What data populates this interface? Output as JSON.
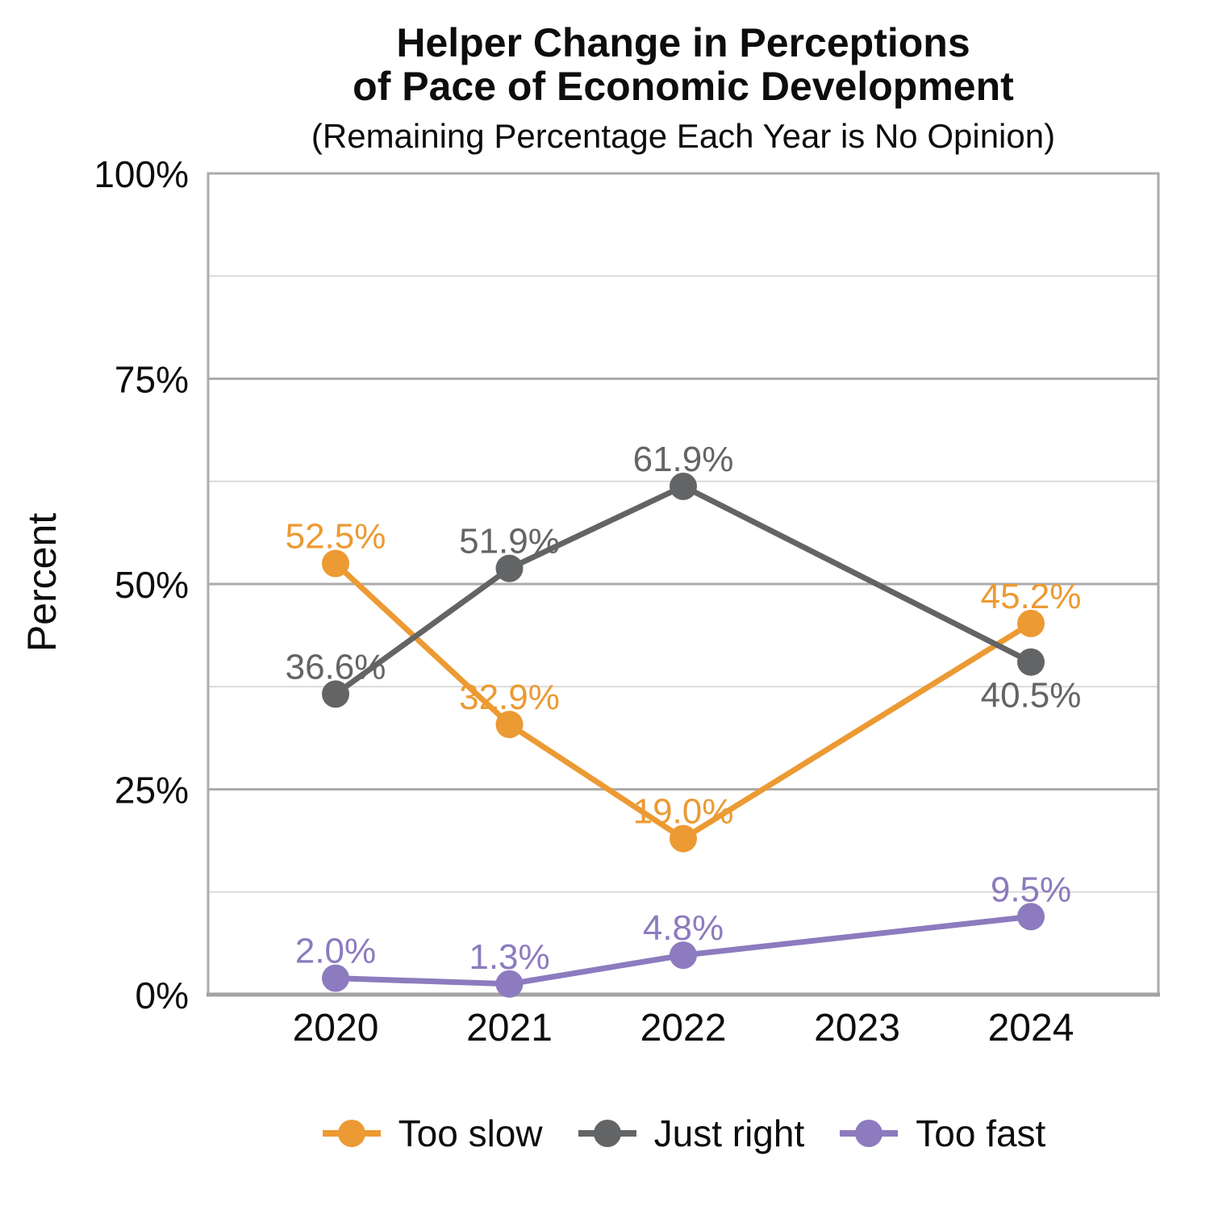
{
  "title": {
    "line1": "Helper Change in Perceptions",
    "line2": "of Pace of Economic Development"
  },
  "subtitle": "(Remaining Percentage Each Year is No Opinion)",
  "y_axis": {
    "title": "Percent"
  },
  "colors": {
    "background": "#FFFFFF",
    "text": "#0D0D0D",
    "plot_border": "#ABABAB",
    "grid_major": "#ABABAB",
    "grid_minor": "#DBDBDB",
    "axis_line": "#A3A3A3",
    "too_slow": "#EC9A33",
    "just_right": "#636466",
    "too_fast": "#8C7BBE"
  },
  "chart_data": {
    "type": "line",
    "title": "Helper Change in Perceptions of Pace of Economic Development",
    "subtitle": "(Remaining Percentage Each Year is No Opinion)",
    "xlabel": "",
    "ylabel": "Percent",
    "ylim": [
      0,
      100
    ],
    "grid": true,
    "grid_step": 12.5,
    "major_step": 25,
    "legend_position": "bottom",
    "categories": [
      "2020",
      "2021",
      "2022",
      "2023",
      "2024"
    ],
    "y_ticks": [
      {
        "value": 100,
        "label": "100%"
      },
      {
        "value": 75,
        "label": "75%"
      },
      {
        "value": 50,
        "label": "50%"
      },
      {
        "value": 25,
        "label": "25%"
      },
      {
        "value": 0,
        "label": "0%"
      }
    ],
    "series": [
      {
        "name": "Too slow",
        "color": "#EC9A33",
        "values": [
          52.5,
          32.9,
          19.0,
          null,
          45.2
        ],
        "labels": [
          "52.5%",
          "32.9%",
          "19.0%",
          null,
          "45.2%"
        ],
        "label_sides": [
          "above",
          "above",
          "above",
          null,
          "above"
        ]
      },
      {
        "name": "Just right",
        "color": "#636466",
        "values": [
          36.6,
          51.9,
          61.9,
          null,
          40.5
        ],
        "labels": [
          "36.6%",
          "51.9%",
          "61.9%",
          null,
          "40.5%"
        ],
        "label_sides": [
          "above",
          "above",
          "above",
          null,
          "below"
        ]
      },
      {
        "name": "Too fast",
        "color": "#8C7BBE",
        "values": [
          2.0,
          1.3,
          4.8,
          null,
          9.5
        ],
        "labels": [
          "2.0%",
          "1.3%",
          "4.8%",
          null,
          "9.5%"
        ],
        "label_sides": [
          "above",
          "above",
          "above",
          null,
          "above"
        ]
      }
    ]
  }
}
